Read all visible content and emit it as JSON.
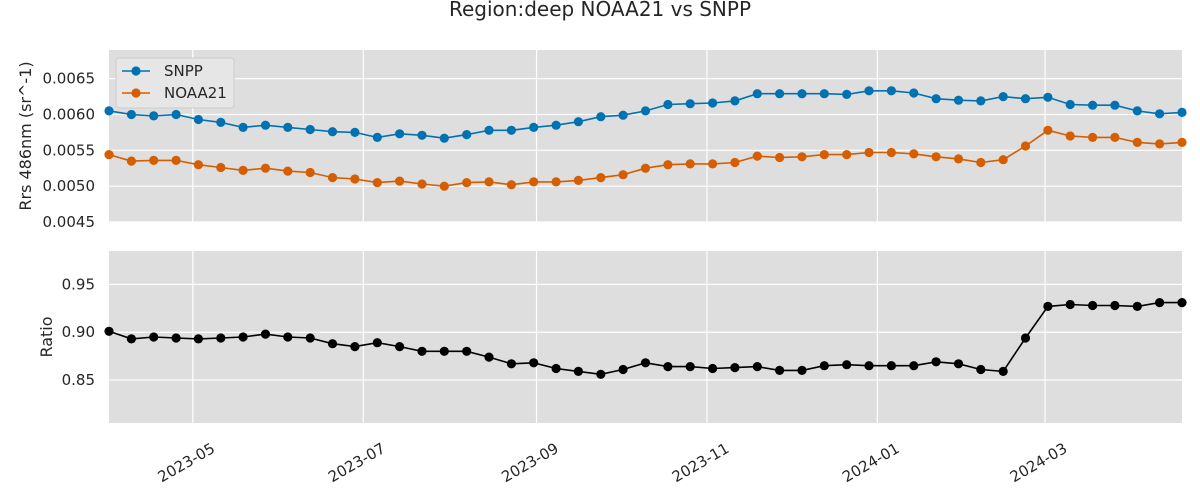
{
  "chart_data": {
    "type": "line",
    "title": "Region:deep NOAA21 vs SNPP",
    "x_dates": [
      "2023-04-01",
      "2023-04-09",
      "2023-04-17",
      "2023-04-25",
      "2023-05-03",
      "2023-05-11",
      "2023-05-19",
      "2023-05-27",
      "2023-06-04",
      "2023-06-12",
      "2023-06-20",
      "2023-06-28",
      "2023-07-06",
      "2023-07-14",
      "2023-07-22",
      "2023-07-30",
      "2023-08-07",
      "2023-08-15",
      "2023-08-23",
      "2023-08-31",
      "2023-09-08",
      "2023-09-16",
      "2023-09-24",
      "2023-10-02",
      "2023-10-10",
      "2023-10-18",
      "2023-10-26",
      "2023-11-03",
      "2023-11-11",
      "2023-11-19",
      "2023-11-27",
      "2023-12-05",
      "2023-12-13",
      "2023-12-21",
      "2023-12-29",
      "2024-01-06",
      "2024-01-14",
      "2024-01-22",
      "2024-01-30",
      "2024-02-07",
      "2024-02-15",
      "2024-02-23",
      "2024-03-02",
      "2024-03-10",
      "2024-03-18",
      "2024-03-26",
      "2024-04-03",
      "2024-04-11",
      "2024-04-19"
    ],
    "xlim": [
      "2023-04-01",
      "2024-04-19"
    ],
    "x_ticks": [
      "2023-05",
      "2023-07",
      "2023-09",
      "2023-11",
      "2024-01",
      "2024-03"
    ],
    "panels": [
      {
        "id": "top",
        "ylabel": "Rrs 486nm (sr^-1)",
        "ylim": [
          0.0045,
          0.0069
        ],
        "y_ticks": [
          "0.0045",
          "0.0050",
          "0.0055",
          "0.0060",
          "0.0065"
        ],
        "legend": "top-left",
        "grid": true,
        "series": [
          {
            "name": "SNPP",
            "color": "#0072b2",
            "values": [
              0.00605,
              0.006,
              0.00598,
              0.006,
              0.00593,
              0.00589,
              0.00582,
              0.00585,
              0.00582,
              0.00579,
              0.00576,
              0.00575,
              0.00568,
              0.00573,
              0.00571,
              0.00567,
              0.00572,
              0.00578,
              0.00578,
              0.00582,
              0.00585,
              0.0059,
              0.00597,
              0.00599,
              0.00605,
              0.00614,
              0.00615,
              0.00616,
              0.00619,
              0.00629,
              0.00629,
              0.00629,
              0.00629,
              0.00628,
              0.00633,
              0.00633,
              0.0063,
              0.00622,
              0.0062,
              0.00619,
              0.00625,
              0.00622,
              0.00624,
              0.00614,
              0.00613,
              0.00613,
              0.00605,
              0.00601,
              0.00603
            ]
          },
          {
            "name": "NOAA21",
            "color": "#d55e00",
            "values": [
              0.00544,
              0.00535,
              0.00536,
              0.00536,
              0.0053,
              0.00526,
              0.00522,
              0.00525,
              0.00521,
              0.00519,
              0.00512,
              0.0051,
              0.00505,
              0.00507,
              0.00503,
              0.005,
              0.00505,
              0.00506,
              0.00502,
              0.00506,
              0.00506,
              0.00508,
              0.00512,
              0.00516,
              0.00525,
              0.0053,
              0.00531,
              0.00531,
              0.00533,
              0.00542,
              0.0054,
              0.00541,
              0.00544,
              0.00544,
              0.00547,
              0.00547,
              0.00545,
              0.00541,
              0.00538,
              0.00533,
              0.00537,
              0.00556,
              0.00578,
              0.0057,
              0.00568,
              0.00568,
              0.00561,
              0.00559,
              0.00561
            ]
          }
        ]
      },
      {
        "id": "bottom",
        "ylabel": "Ratio",
        "ylim": [
          0.805,
          0.985
        ],
        "y_ticks": [
          "0.85",
          "0.90",
          "0.95"
        ],
        "grid": true,
        "series": [
          {
            "name": "",
            "color": "#000000",
            "values": [
              0.901,
              0.893,
              0.895,
              0.894,
              0.893,
              0.894,
              0.895,
              0.898,
              0.895,
              0.894,
              0.888,
              0.885,
              0.889,
              0.885,
              0.88,
              0.88,
              0.88,
              0.874,
              0.867,
              0.868,
              0.862,
              0.859,
              0.856,
              0.861,
              0.868,
              0.864,
              0.864,
              0.862,
              0.863,
              0.864,
              0.86,
              0.86,
              0.865,
              0.866,
              0.865,
              0.865,
              0.865,
              0.869,
              0.867,
              0.861,
              0.859,
              0.894,
              0.927,
              0.929,
              0.928,
              0.928,
              0.927,
              0.931,
              0.931
            ]
          }
        ]
      }
    ]
  }
}
